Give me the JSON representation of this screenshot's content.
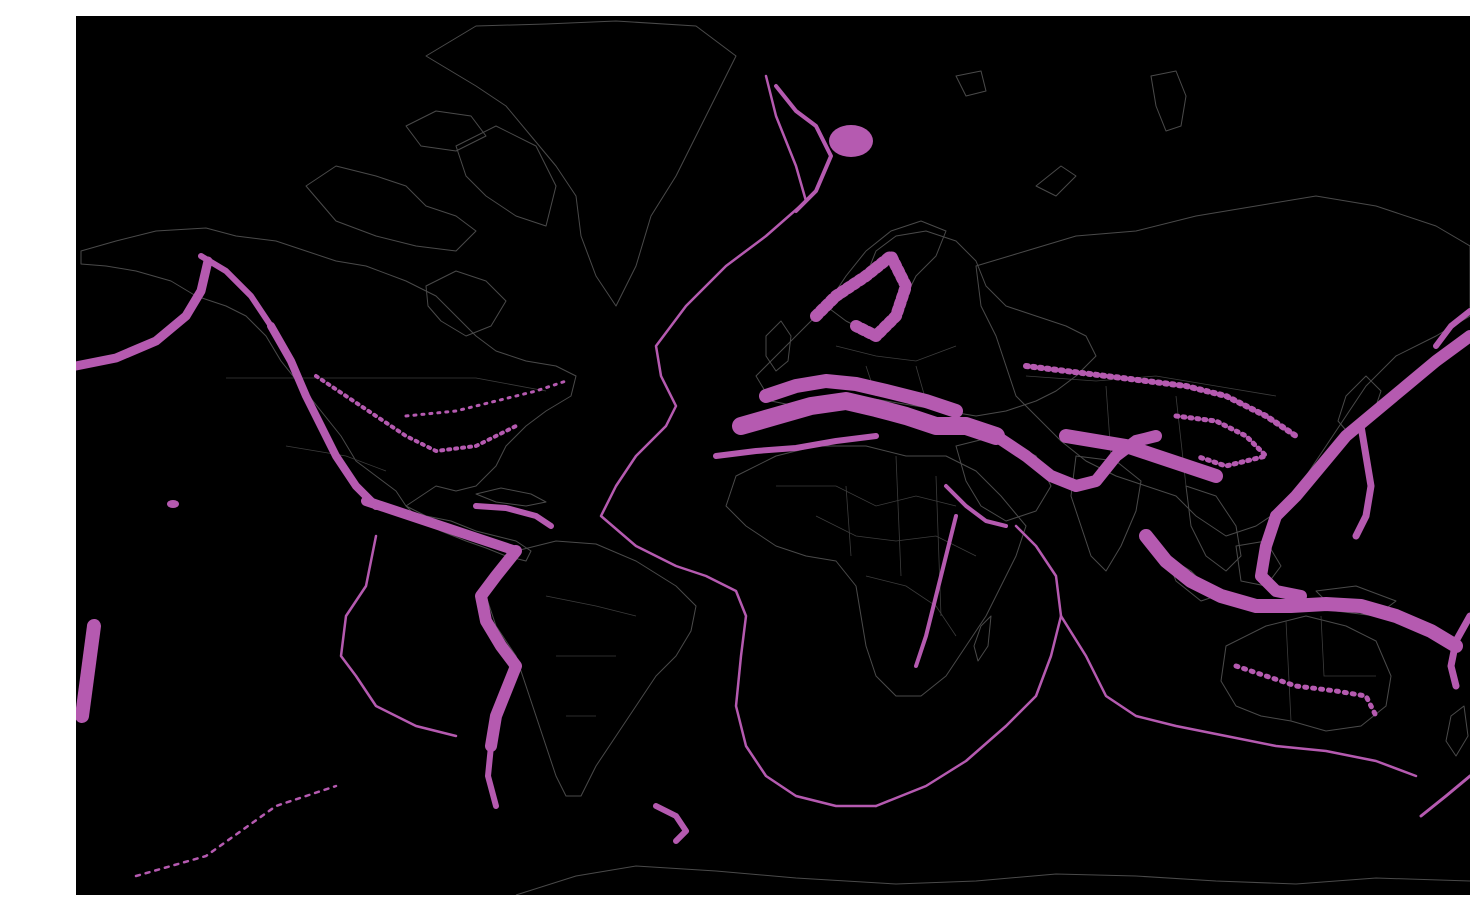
{
  "map": {
    "projection": "mercator",
    "background_color": "#000000",
    "coastline_color": "#4a4a4a",
    "border_color": "#3c3c3c",
    "point_color": "#b55ab0",
    "layer": "earthquake-epicenter-density"
  }
}
